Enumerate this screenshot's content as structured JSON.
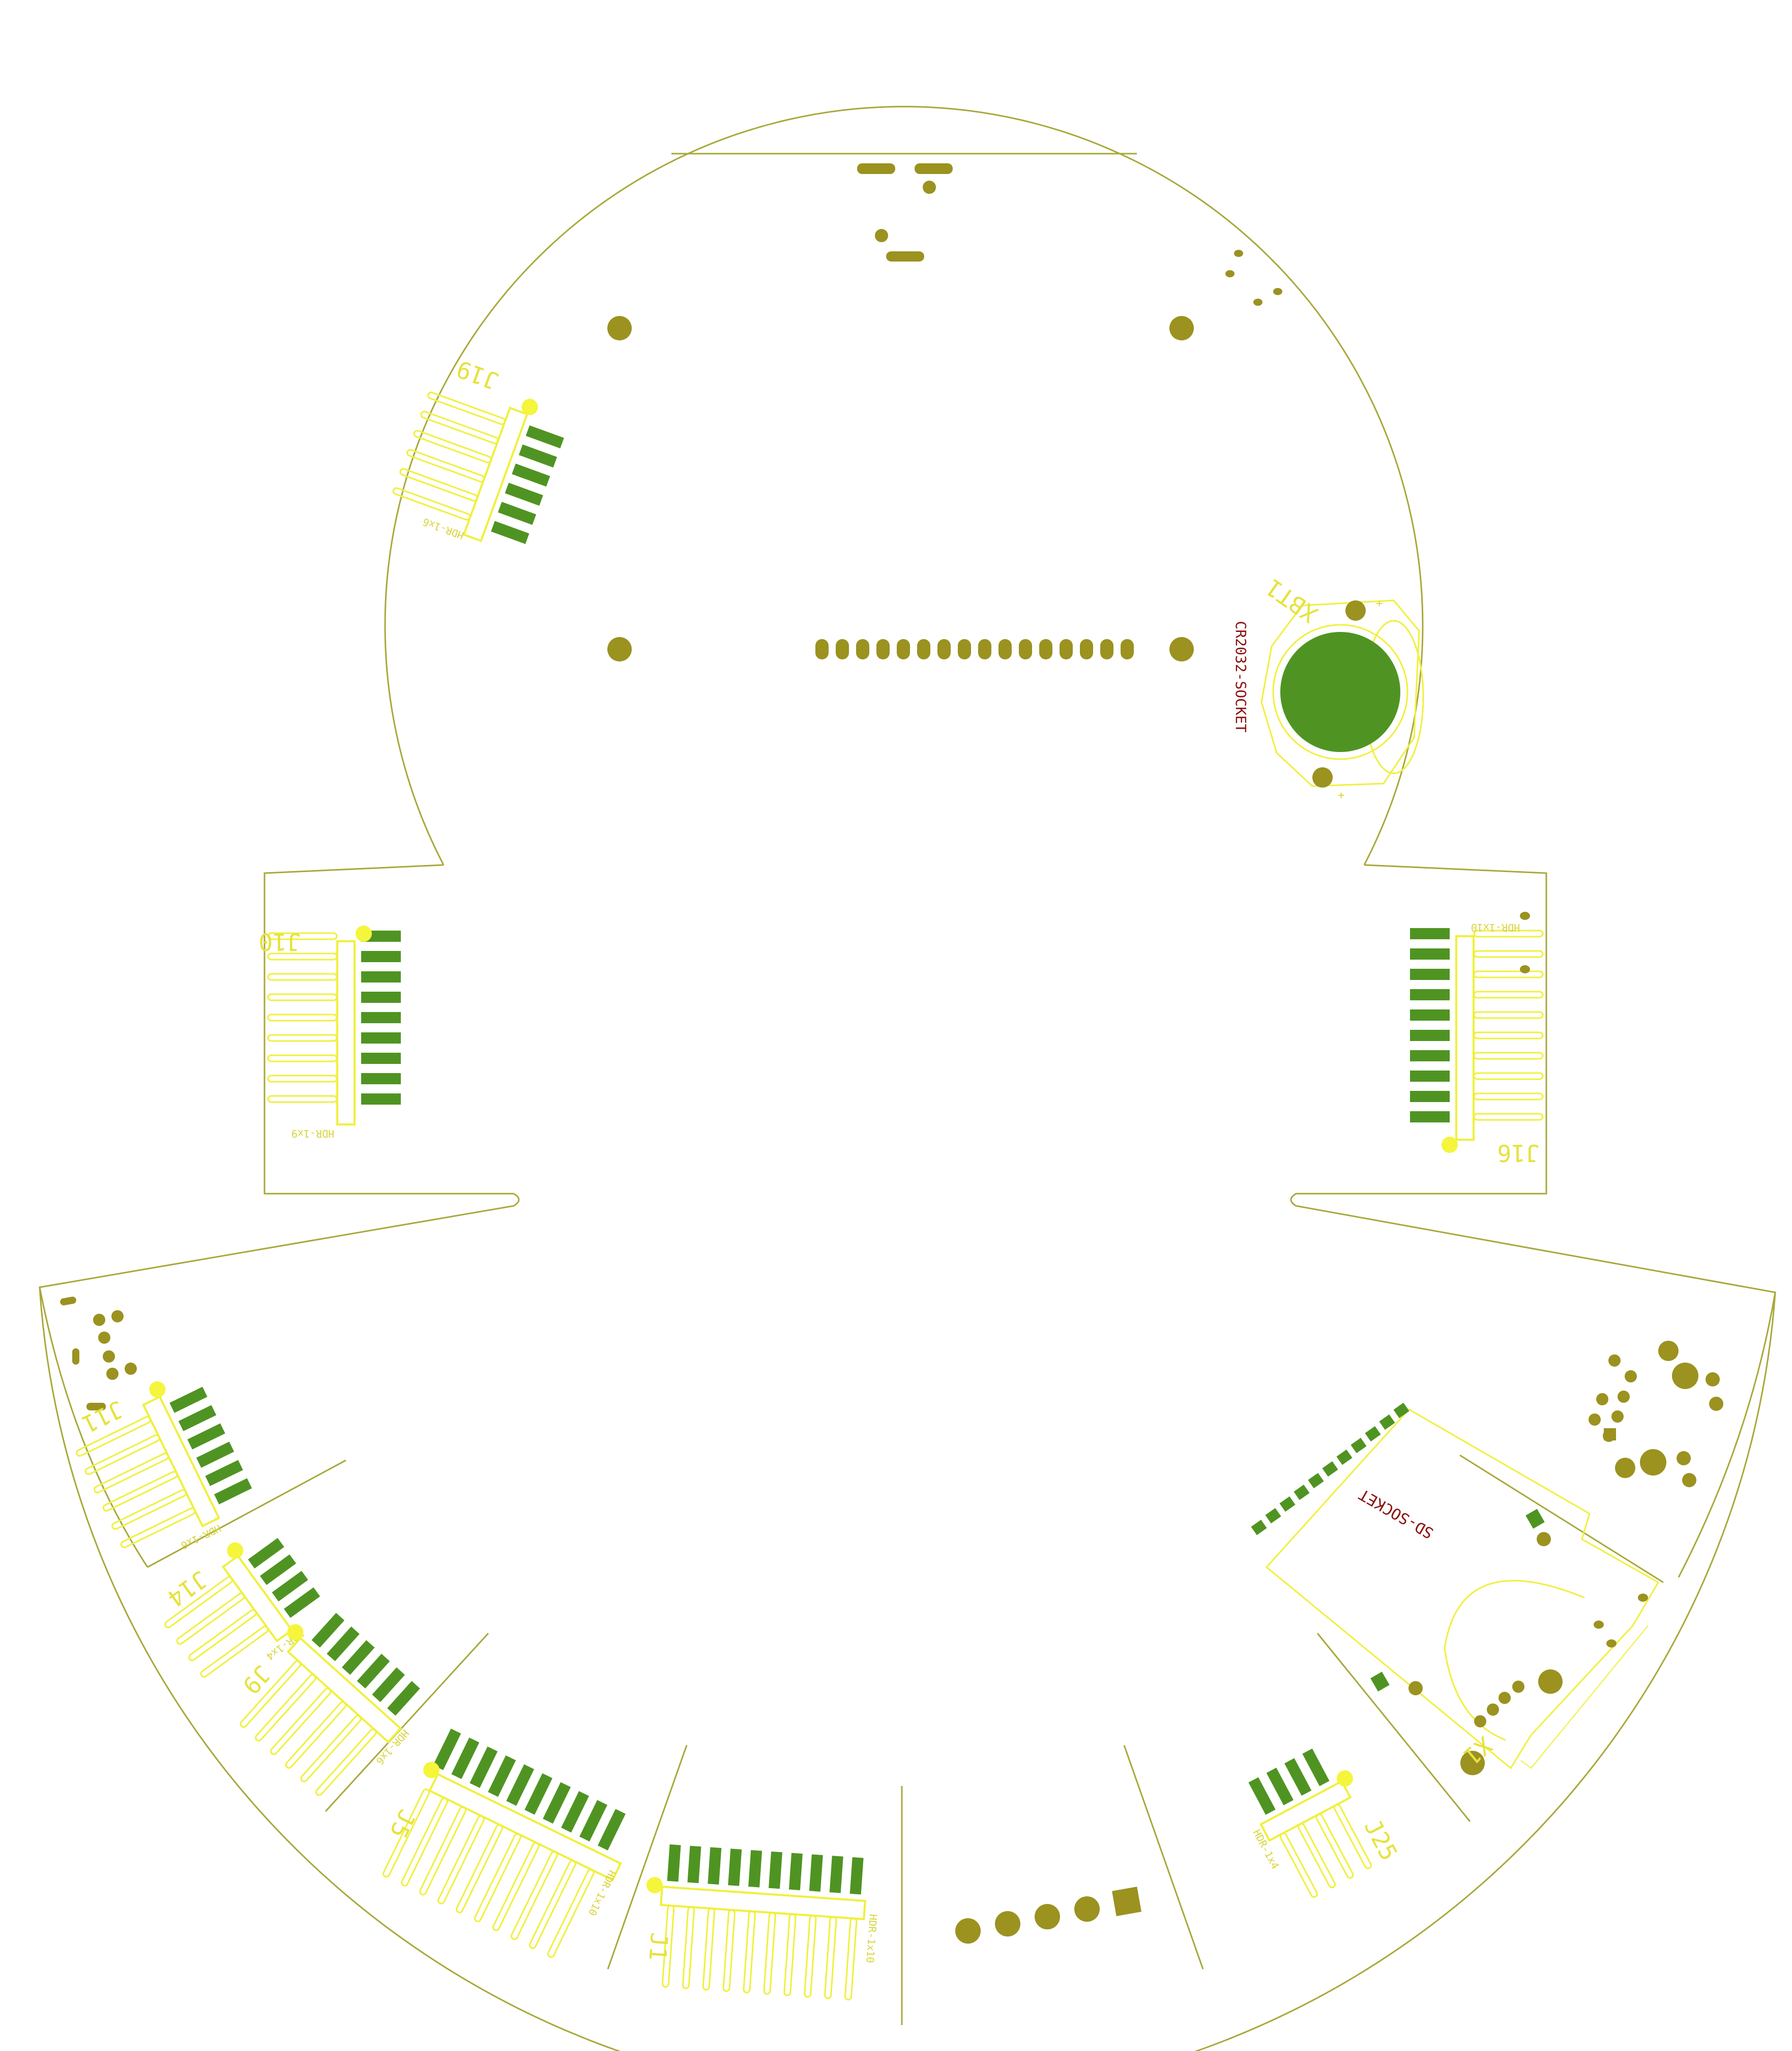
{
  "colors": {
    "background": "#ffffff",
    "board_outline": "#a8a83a",
    "silkscreen": "#f0f03c",
    "through_hole_pad": "#9b9220",
    "smd_pad": "#4f9422",
    "fab_text": "#8a0f0f"
  },
  "components": {
    "J19": {
      "ref": "J19",
      "value": "HDR-1x6"
    },
    "J10": {
      "ref": "J10",
      "value": "HDR-1x9"
    },
    "J16": {
      "ref": "J16",
      "value": "HDR-1x10"
    },
    "J11": {
      "ref": "J11",
      "value": "HDR-1x6"
    },
    "J14": {
      "ref": "J14",
      "value": "HDR-1x4"
    },
    "J9": {
      "ref": "J9",
      "value": "HDR-1x6"
    },
    "J5": {
      "ref": "J5",
      "value": "HDR-1x10"
    },
    "J1": {
      "ref": "J1",
      "value": "HDR-1x10"
    },
    "J25": {
      "ref": "J25",
      "value": "HDR-1x4"
    },
    "XBT1": {
      "ref": "XBT1",
      "value": "CR2032-SOCKET",
      "pin_plus": "+"
    },
    "SD": {
      "value": "SD-SOCKET"
    },
    "X1": {
      "ref": "X1"
    }
  }
}
